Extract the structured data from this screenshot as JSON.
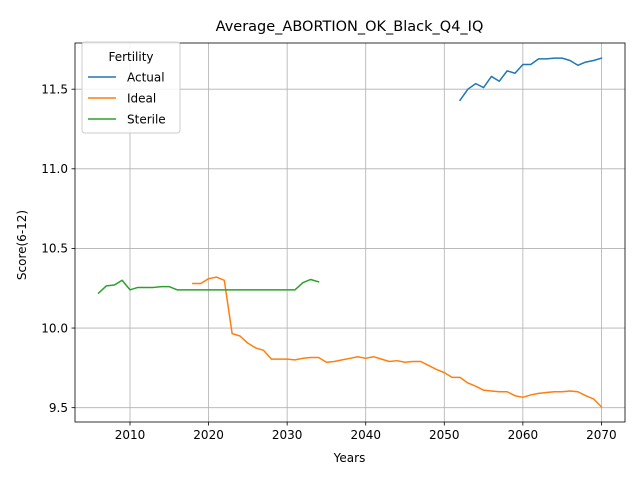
{
  "chart_data": {
    "type": "line",
    "title": "Average_ABORTION_OK_Black_Q4_IQ",
    "xlabel": "Years",
    "ylabel": "Score(6-12)",
    "xlim": [
      2003,
      2073
    ],
    "ylim": [
      9.41,
      11.79
    ],
    "xticks": [
      2010,
      2020,
      2030,
      2040,
      2050,
      2060,
      2070
    ],
    "yticks": [
      9.5,
      10.0,
      10.5,
      11.0,
      11.5
    ],
    "ytick_labels": [
      "9.5",
      "10.0",
      "10.5",
      "11.0",
      "11.5"
    ],
    "grid": true,
    "legend": {
      "title": "Fertility",
      "placement": "top-left"
    },
    "series": [
      {
        "name": "Actual",
        "color": "#1f77b4",
        "x": [
          2052,
          2053,
          2054,
          2055,
          2056,
          2057,
          2058,
          2059,
          2060,
          2061,
          2062,
          2063,
          2064,
          2065,
          2066,
          2067,
          2068,
          2069,
          2070
        ],
        "y": [
          11.43,
          11.5,
          11.535,
          11.51,
          11.58,
          11.55,
          11.615,
          11.6,
          11.655,
          11.655,
          11.69,
          11.69,
          11.695,
          11.695,
          11.68,
          11.65,
          11.67,
          11.68,
          11.695
        ]
      },
      {
        "name": "Ideal",
        "color": "#ff7f0e",
        "x": [
          2018,
          2019,
          2020,
          2021,
          2022,
          2023,
          2024,
          2025,
          2026,
          2027,
          2028,
          2029,
          2030,
          2031,
          2032,
          2033,
          2034,
          2035,
          2036,
          2037,
          2038,
          2039,
          2040,
          2041,
          2042,
          2043,
          2044,
          2045,
          2046,
          2047,
          2048,
          2049,
          2050,
          2051,
          2052,
          2053,
          2054,
          2055,
          2056,
          2057,
          2058,
          2059,
          2060,
          2061,
          2062,
          2063,
          2064,
          2065,
          2066,
          2067,
          2068,
          2069,
          2070
        ],
        "y": [
          10.28,
          10.28,
          10.31,
          10.32,
          10.3,
          9.965,
          9.95,
          9.905,
          9.875,
          9.86,
          9.805,
          9.805,
          9.805,
          9.8,
          9.81,
          9.815,
          9.815,
          9.785,
          9.79,
          9.8,
          9.81,
          9.82,
          9.81,
          9.82,
          9.805,
          9.79,
          9.795,
          9.785,
          9.79,
          9.79,
          9.765,
          9.74,
          9.72,
          9.69,
          9.69,
          9.655,
          9.635,
          9.61,
          9.605,
          9.6,
          9.6,
          9.575,
          9.565,
          9.58,
          9.59,
          9.595,
          9.6,
          9.6,
          9.605,
          9.6,
          9.575,
          9.555,
          9.505
        ]
      },
      {
        "name": "Sterile",
        "color": "#2ca02c",
        "x": [
          2006,
          2007,
          2008,
          2009,
          2010,
          2011,
          2012,
          2013,
          2014,
          2015,
          2016,
          2017,
          2018,
          2019,
          2020,
          2021,
          2022,
          2023,
          2024,
          2025,
          2026,
          2027,
          2028,
          2029,
          2030,
          2031,
          2032,
          2033,
          2034
        ],
        "y": [
          10.22,
          10.265,
          10.27,
          10.3,
          10.24,
          10.255,
          10.255,
          10.255,
          10.26,
          10.26,
          10.24,
          10.24,
          10.24,
          10.24,
          10.24,
          10.24,
          10.24,
          10.24,
          10.24,
          10.24,
          10.24,
          10.24,
          10.24,
          10.24,
          10.24,
          10.24,
          10.285,
          10.305,
          10.29
        ]
      }
    ]
  }
}
